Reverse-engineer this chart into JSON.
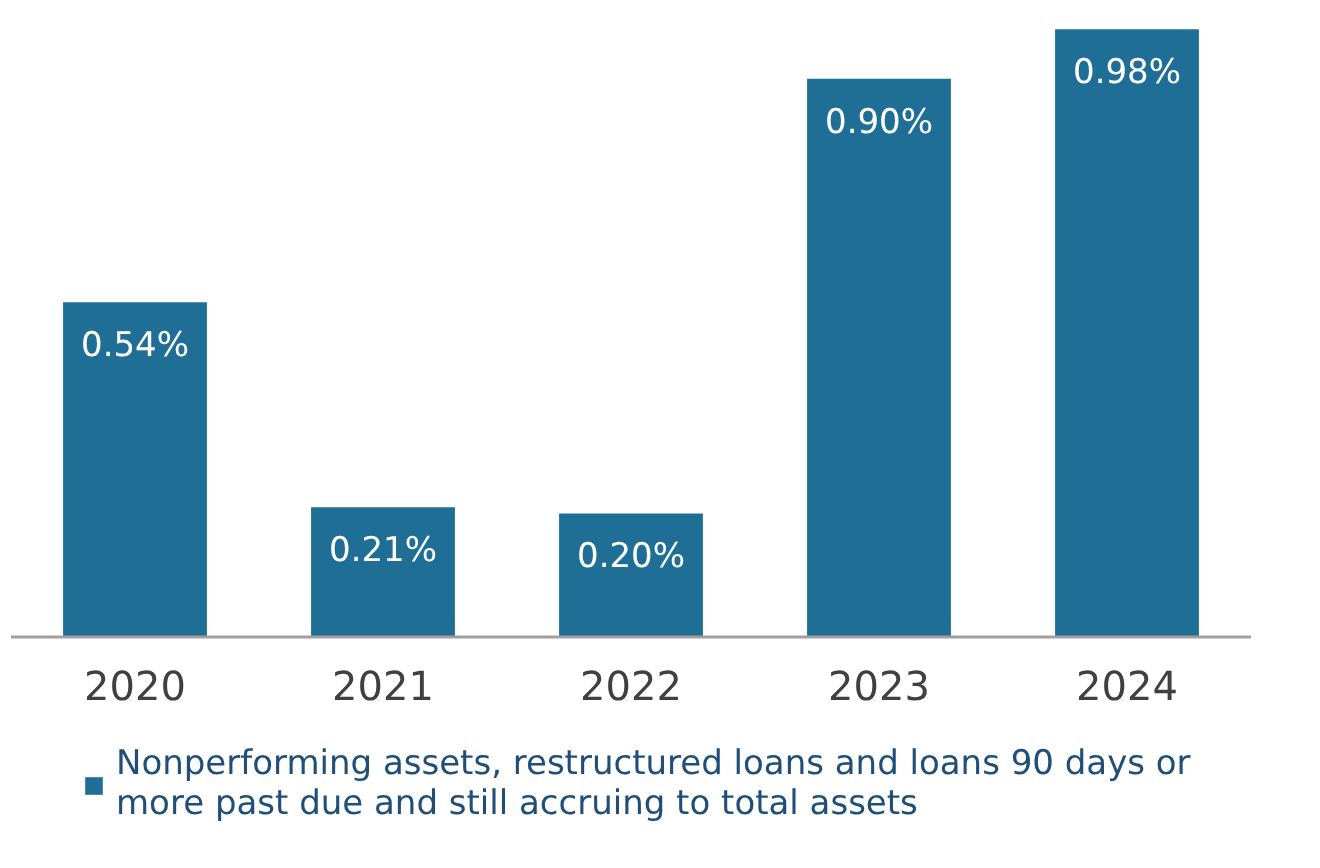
{
  "chart_data": {
    "type": "bar",
    "categories": [
      "2020",
      "2021",
      "2022",
      "2023",
      "2024"
    ],
    "series": [
      {
        "name": "Nonperforming assets, restructured loans and loans 90 days or more past due and still accruing to total assets",
        "color": "#1f6e96",
        "values": [
          0.54,
          0.21,
          0.2,
          0.9,
          0.98
        ],
        "value_labels": [
          "0.54%",
          "0.21%",
          "0.20%",
          "0.90%",
          "0.98%"
        ]
      }
    ],
    "tick_labels": "x",
    "legend": "bottom"
  }
}
